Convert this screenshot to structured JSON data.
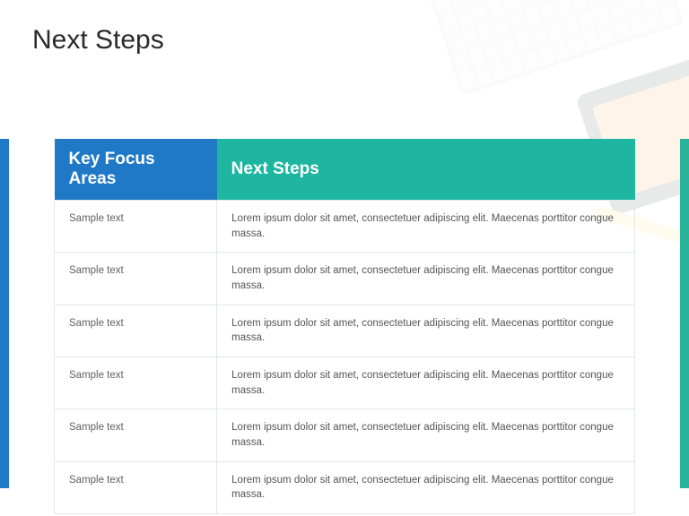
{
  "page": {
    "title": "Next Steps",
    "background_color": "#ffffff",
    "title_color": "#2a2a2a",
    "title_fontsize": 30
  },
  "side_bars": {
    "left_color": "#1f79c6",
    "right_color": "#29b39a"
  },
  "table": {
    "header_font_color": "#ffffff",
    "header_fontsize": 19,
    "body_fontsize": 11.5,
    "body_text_color": "#555555",
    "border_color": "#e3e6e8",
    "columns": [
      {
        "label": "Key Focus Areas",
        "bg": "#1f79c6",
        "width_pct": 28
      },
      {
        "label": "Next Steps",
        "bg": "#1eb6a1",
        "width_pct": 72
      }
    ],
    "rows": [
      {
        "focus": "Sample text",
        "step": "Lorem ipsum dolor sit amet, consectetuer adipiscing elit. Maecenas porttitor congue massa."
      },
      {
        "focus": "Sample text",
        "step": "Lorem ipsum dolor sit amet, consectetuer adipiscing elit. Maecenas porttitor congue massa."
      },
      {
        "focus": "Sample text",
        "step": "Lorem ipsum dolor sit amet, consectetuer adipiscing elit. Maecenas porttitor congue massa."
      },
      {
        "focus": "Sample text",
        "step": "Lorem ipsum dolor sit amet, consectetuer adipiscing elit. Maecenas porttitor congue massa."
      },
      {
        "focus": "Sample text",
        "step": "Lorem ipsum dolor sit amet, consectetuer adipiscing elit. Maecenas porttitor congue massa."
      },
      {
        "focus": "Sample text",
        "step": "Lorem ipsum dolor sit amet, consectetuer adipiscing elit. Maecenas porttitor congue massa."
      }
    ]
  }
}
